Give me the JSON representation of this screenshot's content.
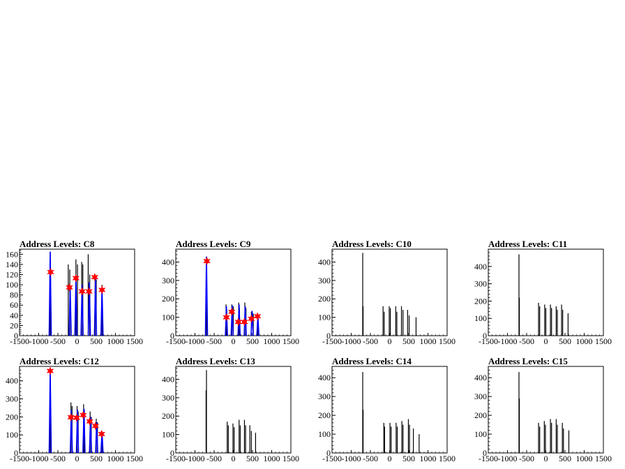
{
  "colors": {
    "background": "#ffffff",
    "histogram": "#000000",
    "fit": "#0000ff",
    "peak_marker": "#ff0000"
  },
  "chart_data": [
    {
      "type": "bar",
      "title": "Address Levels: C8",
      "xlim": [
        -1500,
        1500
      ],
      "ylim": [
        0,
        170
      ],
      "xticks": [
        "-1500",
        "-1000",
        "-500",
        "0",
        "500",
        "1000",
        "1500"
      ],
      "yticks": [
        0,
        20,
        40,
        60,
        80,
        100,
        120,
        140,
        160
      ],
      "spikes": [
        {
          "x": -700,
          "y": 165
        },
        {
          "x": -700,
          "y": 80
        },
        {
          "x": -230,
          "y": 140
        },
        {
          "x": -190,
          "y": 130
        },
        {
          "x": -30,
          "y": 150
        },
        {
          "x": 10,
          "y": 140
        },
        {
          "x": 120,
          "y": 145
        },
        {
          "x": 150,
          "y": 140
        },
        {
          "x": 290,
          "y": 160
        },
        {
          "x": 330,
          "y": 120
        },
        {
          "x": 470,
          "y": 120
        },
        {
          "x": 500,
          "y": 110
        },
        {
          "x": 650,
          "y": 100
        }
      ],
      "fit_peaks": [
        {
          "x": -700,
          "y": 165
        },
        {
          "x": -180,
          "y": 95
        },
        {
          "x": -30,
          "y": 113
        },
        {
          "x": 130,
          "y": 100
        },
        {
          "x": 320,
          "y": 105
        },
        {
          "x": 480,
          "y": 113
        },
        {
          "x": 650,
          "y": 95
        }
      ],
      "markers": [
        {
          "x": -690,
          "y": 125
        },
        {
          "x": -200,
          "y": 95
        },
        {
          "x": -30,
          "y": 113
        },
        {
          "x": 130,
          "y": 87
        },
        {
          "x": 310,
          "y": 87
        },
        {
          "x": 460,
          "y": 115
        },
        {
          "x": 650,
          "y": 90
        }
      ]
    },
    {
      "type": "bar",
      "title": "Address Levels: C9",
      "xlim": [
        -1500,
        1500
      ],
      "ylim": [
        0,
        470
      ],
      "xticks": [
        "-1500",
        "-1000",
        "-500",
        "0",
        "500",
        "1000",
        "1500"
      ],
      "yticks": [
        0,
        100,
        200,
        300,
        400
      ],
      "spikes": [
        {
          "x": -700,
          "y": 430
        },
        {
          "x": -190,
          "y": 170
        },
        {
          "x": -170,
          "y": 140
        },
        {
          "x": -40,
          "y": 170
        },
        {
          "x": 0,
          "y": 160
        },
        {
          "x": 140,
          "y": 180
        },
        {
          "x": 160,
          "y": 150
        },
        {
          "x": 300,
          "y": 180
        },
        {
          "x": 330,
          "y": 150
        },
        {
          "x": 470,
          "y": 130
        },
        {
          "x": 520,
          "y": 120
        },
        {
          "x": 640,
          "y": 110
        }
      ],
      "fit_peaks": [
        {
          "x": -700,
          "y": 430
        },
        {
          "x": -180,
          "y": 160
        },
        {
          "x": -30,
          "y": 165
        },
        {
          "x": 150,
          "y": 170
        },
        {
          "x": 310,
          "y": 160
        },
        {
          "x": 490,
          "y": 135
        },
        {
          "x": 640,
          "y": 110
        }
      ],
      "markers": [
        {
          "x": -690,
          "y": 405
        },
        {
          "x": -180,
          "y": 100
        },
        {
          "x": -40,
          "y": 130
        },
        {
          "x": 130,
          "y": 75
        },
        {
          "x": 290,
          "y": 75
        },
        {
          "x": 470,
          "y": 92
        },
        {
          "x": 630,
          "y": 105
        }
      ]
    },
    {
      "type": "bar",
      "title": "Address Levels: C10",
      "xlim": [
        -1500,
        1500
      ],
      "ylim": [
        0,
        470
      ],
      "xticks": [
        "-1500",
        "-1000",
        "-500",
        "0",
        "500",
        "1000",
        "1500"
      ],
      "yticks": [
        0,
        100,
        200,
        300,
        400
      ],
      "spikes": [
        {
          "x": -700,
          "y": 450
        },
        {
          "x": -690,
          "y": 160
        },
        {
          "x": -170,
          "y": 160
        },
        {
          "x": -140,
          "y": 130
        },
        {
          "x": -10,
          "y": 160
        },
        {
          "x": 20,
          "y": 150
        },
        {
          "x": 160,
          "y": 160
        },
        {
          "x": 190,
          "y": 130
        },
        {
          "x": 310,
          "y": 160
        },
        {
          "x": 350,
          "y": 140
        },
        {
          "x": 470,
          "y": 140
        },
        {
          "x": 510,
          "y": 110
        },
        {
          "x": 690,
          "y": 100
        }
      ]
    },
    {
      "type": "bar",
      "title": "Address Levels: C11",
      "xlim": [
        -1500,
        1500
      ],
      "ylim": [
        0,
        500
      ],
      "xticks": [
        "-1500",
        "-1000",
        "-500",
        "0",
        "500",
        "1000",
        "1500"
      ],
      "yticks": [
        0,
        100,
        200,
        300,
        400
      ],
      "spikes": [
        {
          "x": -700,
          "y": 470
        },
        {
          "x": -690,
          "y": 220
        },
        {
          "x": -190,
          "y": 190
        },
        {
          "x": -160,
          "y": 170
        },
        {
          "x": -30,
          "y": 180
        },
        {
          "x": 0,
          "y": 160
        },
        {
          "x": 120,
          "y": 180
        },
        {
          "x": 150,
          "y": 160
        },
        {
          "x": 270,
          "y": 170
        },
        {
          "x": 300,
          "y": 150
        },
        {
          "x": 410,
          "y": 180
        },
        {
          "x": 440,
          "y": 150
        },
        {
          "x": 580,
          "y": 130
        }
      ]
    },
    {
      "type": "bar",
      "title": "Address Levels: C12",
      "xlim": [
        -1500,
        1500
      ],
      "ylim": [
        0,
        480
      ],
      "xticks": [
        "-1500",
        "-1000",
        "-500",
        "0",
        "500",
        "1000",
        "1500"
      ],
      "yticks": [
        0,
        100,
        200,
        300,
        400
      ],
      "spikes": [
        {
          "x": -700,
          "y": 460
        },
        {
          "x": -160,
          "y": 280
        },
        {
          "x": -130,
          "y": 260
        },
        {
          "x": 0,
          "y": 260
        },
        {
          "x": 30,
          "y": 230
        },
        {
          "x": 170,
          "y": 270
        },
        {
          "x": 190,
          "y": 240
        },
        {
          "x": 340,
          "y": 230
        },
        {
          "x": 370,
          "y": 200
        },
        {
          "x": 500,
          "y": 190
        },
        {
          "x": 530,
          "y": 170
        },
        {
          "x": 650,
          "y": 120
        }
      ],
      "fit_peaks": [
        {
          "x": -700,
          "y": 460
        },
        {
          "x": -150,
          "y": 240
        },
        {
          "x": 10,
          "y": 240
        },
        {
          "x": 180,
          "y": 245
        },
        {
          "x": 350,
          "y": 200
        },
        {
          "x": 510,
          "y": 170
        },
        {
          "x": 650,
          "y": 120
        }
      ],
      "markers": [
        {
          "x": -700,
          "y": 455
        },
        {
          "x": -160,
          "y": 198
        },
        {
          "x": -10,
          "y": 195
        },
        {
          "x": 160,
          "y": 210
        },
        {
          "x": 330,
          "y": 175
        },
        {
          "x": 480,
          "y": 150
        },
        {
          "x": 640,
          "y": 105
        }
      ]
    },
    {
      "type": "bar",
      "title": "Address Levels: C13",
      "xlim": [
        -1500,
        1500
      ],
      "ylim": [
        0,
        470
      ],
      "xticks": [
        "-1500",
        "-1000",
        "-500",
        "0",
        "500",
        "1000",
        "1500"
      ],
      "yticks": [
        0,
        100,
        200,
        300,
        400
      ],
      "spikes": [
        {
          "x": -700,
          "y": 450
        },
        {
          "x": -710,
          "y": 340
        },
        {
          "x": -160,
          "y": 170
        },
        {
          "x": -130,
          "y": 150
        },
        {
          "x": -10,
          "y": 160
        },
        {
          "x": 20,
          "y": 140
        },
        {
          "x": 150,
          "y": 180
        },
        {
          "x": 180,
          "y": 150
        },
        {
          "x": 290,
          "y": 180
        },
        {
          "x": 320,
          "y": 150
        },
        {
          "x": 430,
          "y": 150
        },
        {
          "x": 470,
          "y": 120
        },
        {
          "x": 580,
          "y": 110
        }
      ]
    },
    {
      "type": "bar",
      "title": "Address Levels: C14",
      "xlim": [
        -1500,
        1500
      ],
      "ylim": [
        0,
        460
      ],
      "xticks": [
        "-1500",
        "-1000",
        "-500",
        "0",
        "500",
        "1000",
        "1500"
      ],
      "yticks": [
        0,
        100,
        200,
        300,
        400
      ],
      "spikes": [
        {
          "x": -700,
          "y": 430
        },
        {
          "x": -690,
          "y": 230
        },
        {
          "x": -150,
          "y": 160
        },
        {
          "x": -130,
          "y": 140
        },
        {
          "x": 10,
          "y": 160
        },
        {
          "x": 40,
          "y": 140
        },
        {
          "x": 170,
          "y": 160
        },
        {
          "x": 200,
          "y": 140
        },
        {
          "x": 320,
          "y": 170
        },
        {
          "x": 350,
          "y": 150
        },
        {
          "x": 490,
          "y": 180
        },
        {
          "x": 520,
          "y": 150
        },
        {
          "x": 620,
          "y": 130
        },
        {
          "x": 770,
          "y": 100
        }
      ]
    },
    {
      "type": "bar",
      "title": "Address Levels: C15",
      "xlim": [
        -1500,
        1500
      ],
      "ylim": [
        0,
        460
      ],
      "xticks": [
        "-1500",
        "-1000",
        "-500",
        "0",
        "500",
        "1000",
        "1500"
      ],
      "yticks": [
        0,
        100,
        200,
        300,
        400
      ],
      "spikes": [
        {
          "x": -700,
          "y": 430
        },
        {
          "x": -690,
          "y": 290
        },
        {
          "x": -190,
          "y": 160
        },
        {
          "x": -160,
          "y": 140
        },
        {
          "x": -40,
          "y": 170
        },
        {
          "x": -10,
          "y": 150
        },
        {
          "x": 120,
          "y": 180
        },
        {
          "x": 150,
          "y": 160
        },
        {
          "x": 270,
          "y": 180
        },
        {
          "x": 300,
          "y": 150
        },
        {
          "x": 430,
          "y": 160
        },
        {
          "x": 460,
          "y": 130
        },
        {
          "x": 600,
          "y": 120
        }
      ]
    }
  ]
}
